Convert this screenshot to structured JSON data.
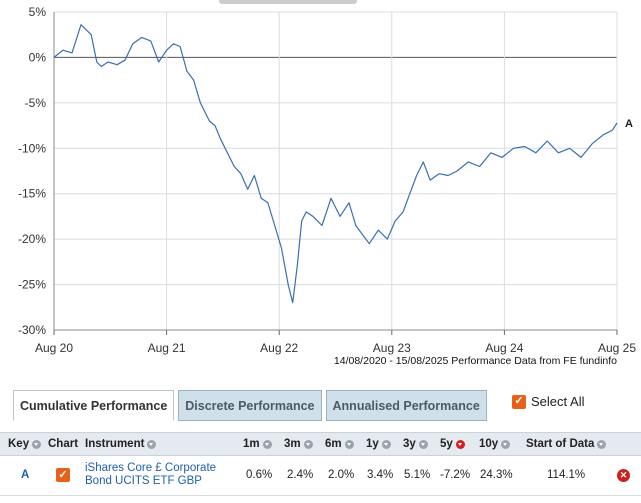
{
  "chart_data": {
    "type": "line",
    "y_ticks": [
      "5%",
      "0%",
      "-5%",
      "-10%",
      "-15%",
      "-20%",
      "-25%",
      "-30%"
    ],
    "y_tick_values": [
      5,
      0,
      -5,
      -10,
      -15,
      -20,
      -25,
      -30
    ],
    "ylim": [
      -30,
      5
    ],
    "x_ticks": [
      "Aug 20",
      "Aug 21",
      "Aug 22",
      "Aug 23",
      "Aug 24",
      "Aug 25"
    ],
    "x_tick_values": [
      2020.62,
      2021.62,
      2022.62,
      2023.62,
      2024.62,
      2025.62
    ],
    "xlim": [
      2020.62,
      2025.62
    ],
    "grid": true,
    "zero_line": true,
    "series": [
      {
        "name": "A",
        "color": "#3a6fb0",
        "x": [
          2020.62,
          2020.7,
          2020.78,
          2020.86,
          2020.95,
          2021.0,
          2021.04,
          2021.1,
          2021.18,
          2021.25,
          2021.32,
          2021.4,
          2021.48,
          2021.55,
          2021.62,
          2021.68,
          2021.74,
          2021.8,
          2021.86,
          2021.92,
          2022.0,
          2022.05,
          2022.1,
          2022.16,
          2022.22,
          2022.28,
          2022.34,
          2022.4,
          2022.46,
          2022.52,
          2022.58,
          2022.64,
          2022.7,
          2022.74,
          2022.78,
          2022.82,
          2022.86,
          2022.92,
          2023.0,
          2023.08,
          2023.16,
          2023.24,
          2023.3,
          2023.36,
          2023.42,
          2023.5,
          2023.58,
          2023.65,
          2023.72,
          2023.78,
          2023.84,
          2023.9,
          2023.96,
          2024.04,
          2024.12,
          2024.2,
          2024.3,
          2024.4,
          2024.5,
          2024.6,
          2024.7,
          2024.8,
          2024.9,
          2025.0,
          2025.1,
          2025.2,
          2025.3,
          2025.4,
          2025.5,
          2025.58,
          2025.62
        ],
        "values": [
          0.0,
          0.8,
          0.5,
          3.6,
          2.5,
          -0.5,
          -1.0,
          -0.5,
          -0.8,
          -0.3,
          1.5,
          2.2,
          1.8,
          -0.5,
          0.8,
          1.5,
          1.2,
          -1.5,
          -2.5,
          -5.0,
          -7.0,
          -7.5,
          -9.0,
          -10.5,
          -12.0,
          -12.8,
          -14.5,
          -13.0,
          -15.5,
          -16.0,
          -18.5,
          -21.0,
          -25.0,
          -27.0,
          -23.0,
          -18.0,
          -17.0,
          -17.5,
          -18.5,
          -15.5,
          -17.5,
          -16.0,
          -18.5,
          -19.5,
          -20.5,
          -19.0,
          -20.0,
          -18.0,
          -17.0,
          -15.0,
          -13.0,
          -11.5,
          -13.5,
          -12.8,
          -13.0,
          -12.5,
          -11.5,
          -12.0,
          -10.5,
          -11.0,
          -10.0,
          -9.8,
          -10.5,
          -9.2,
          -10.5,
          -10.0,
          -11.0,
          -9.5,
          -8.5,
          -8.0,
          -7.2
        ]
      }
    ],
    "end_label": "A"
  },
  "caption": "14/08/2020 - 15/08/2025 Performance Data from FE fundinfo",
  "tabs": [
    {
      "label": "Cumulative Performance",
      "active": true
    },
    {
      "label": "Discrete Performance",
      "active": false
    },
    {
      "label": "Annualised Performance",
      "active": false
    }
  ],
  "select_all": {
    "label": "Select All",
    "checked": true,
    "check_glyph": "✓"
  },
  "table": {
    "headers": {
      "key": "Key",
      "chart": "Chart",
      "instrument": "Instrument",
      "m1": "1m",
      "m3": "3m",
      "m6": "6m",
      "y1": "1y",
      "y3": "3y",
      "y5": "5y",
      "y10": "10y",
      "start": "Start of Data"
    },
    "row": {
      "key": "A",
      "chart_checked": true,
      "instrument_line1": "iShares Core £ Corporate",
      "instrument_line2": "Bond UCITS ETF GBP",
      "m1": "0.6%",
      "m3": "2.4%",
      "m6": "2.0%",
      "y1": "3.4%",
      "y3": "5.1%",
      "y5": "-7.2%",
      "y10": "24.3%",
      "start": "114.1%",
      "remove_icon": "close-circle-icon",
      "remove_glyph": "✕"
    }
  }
}
